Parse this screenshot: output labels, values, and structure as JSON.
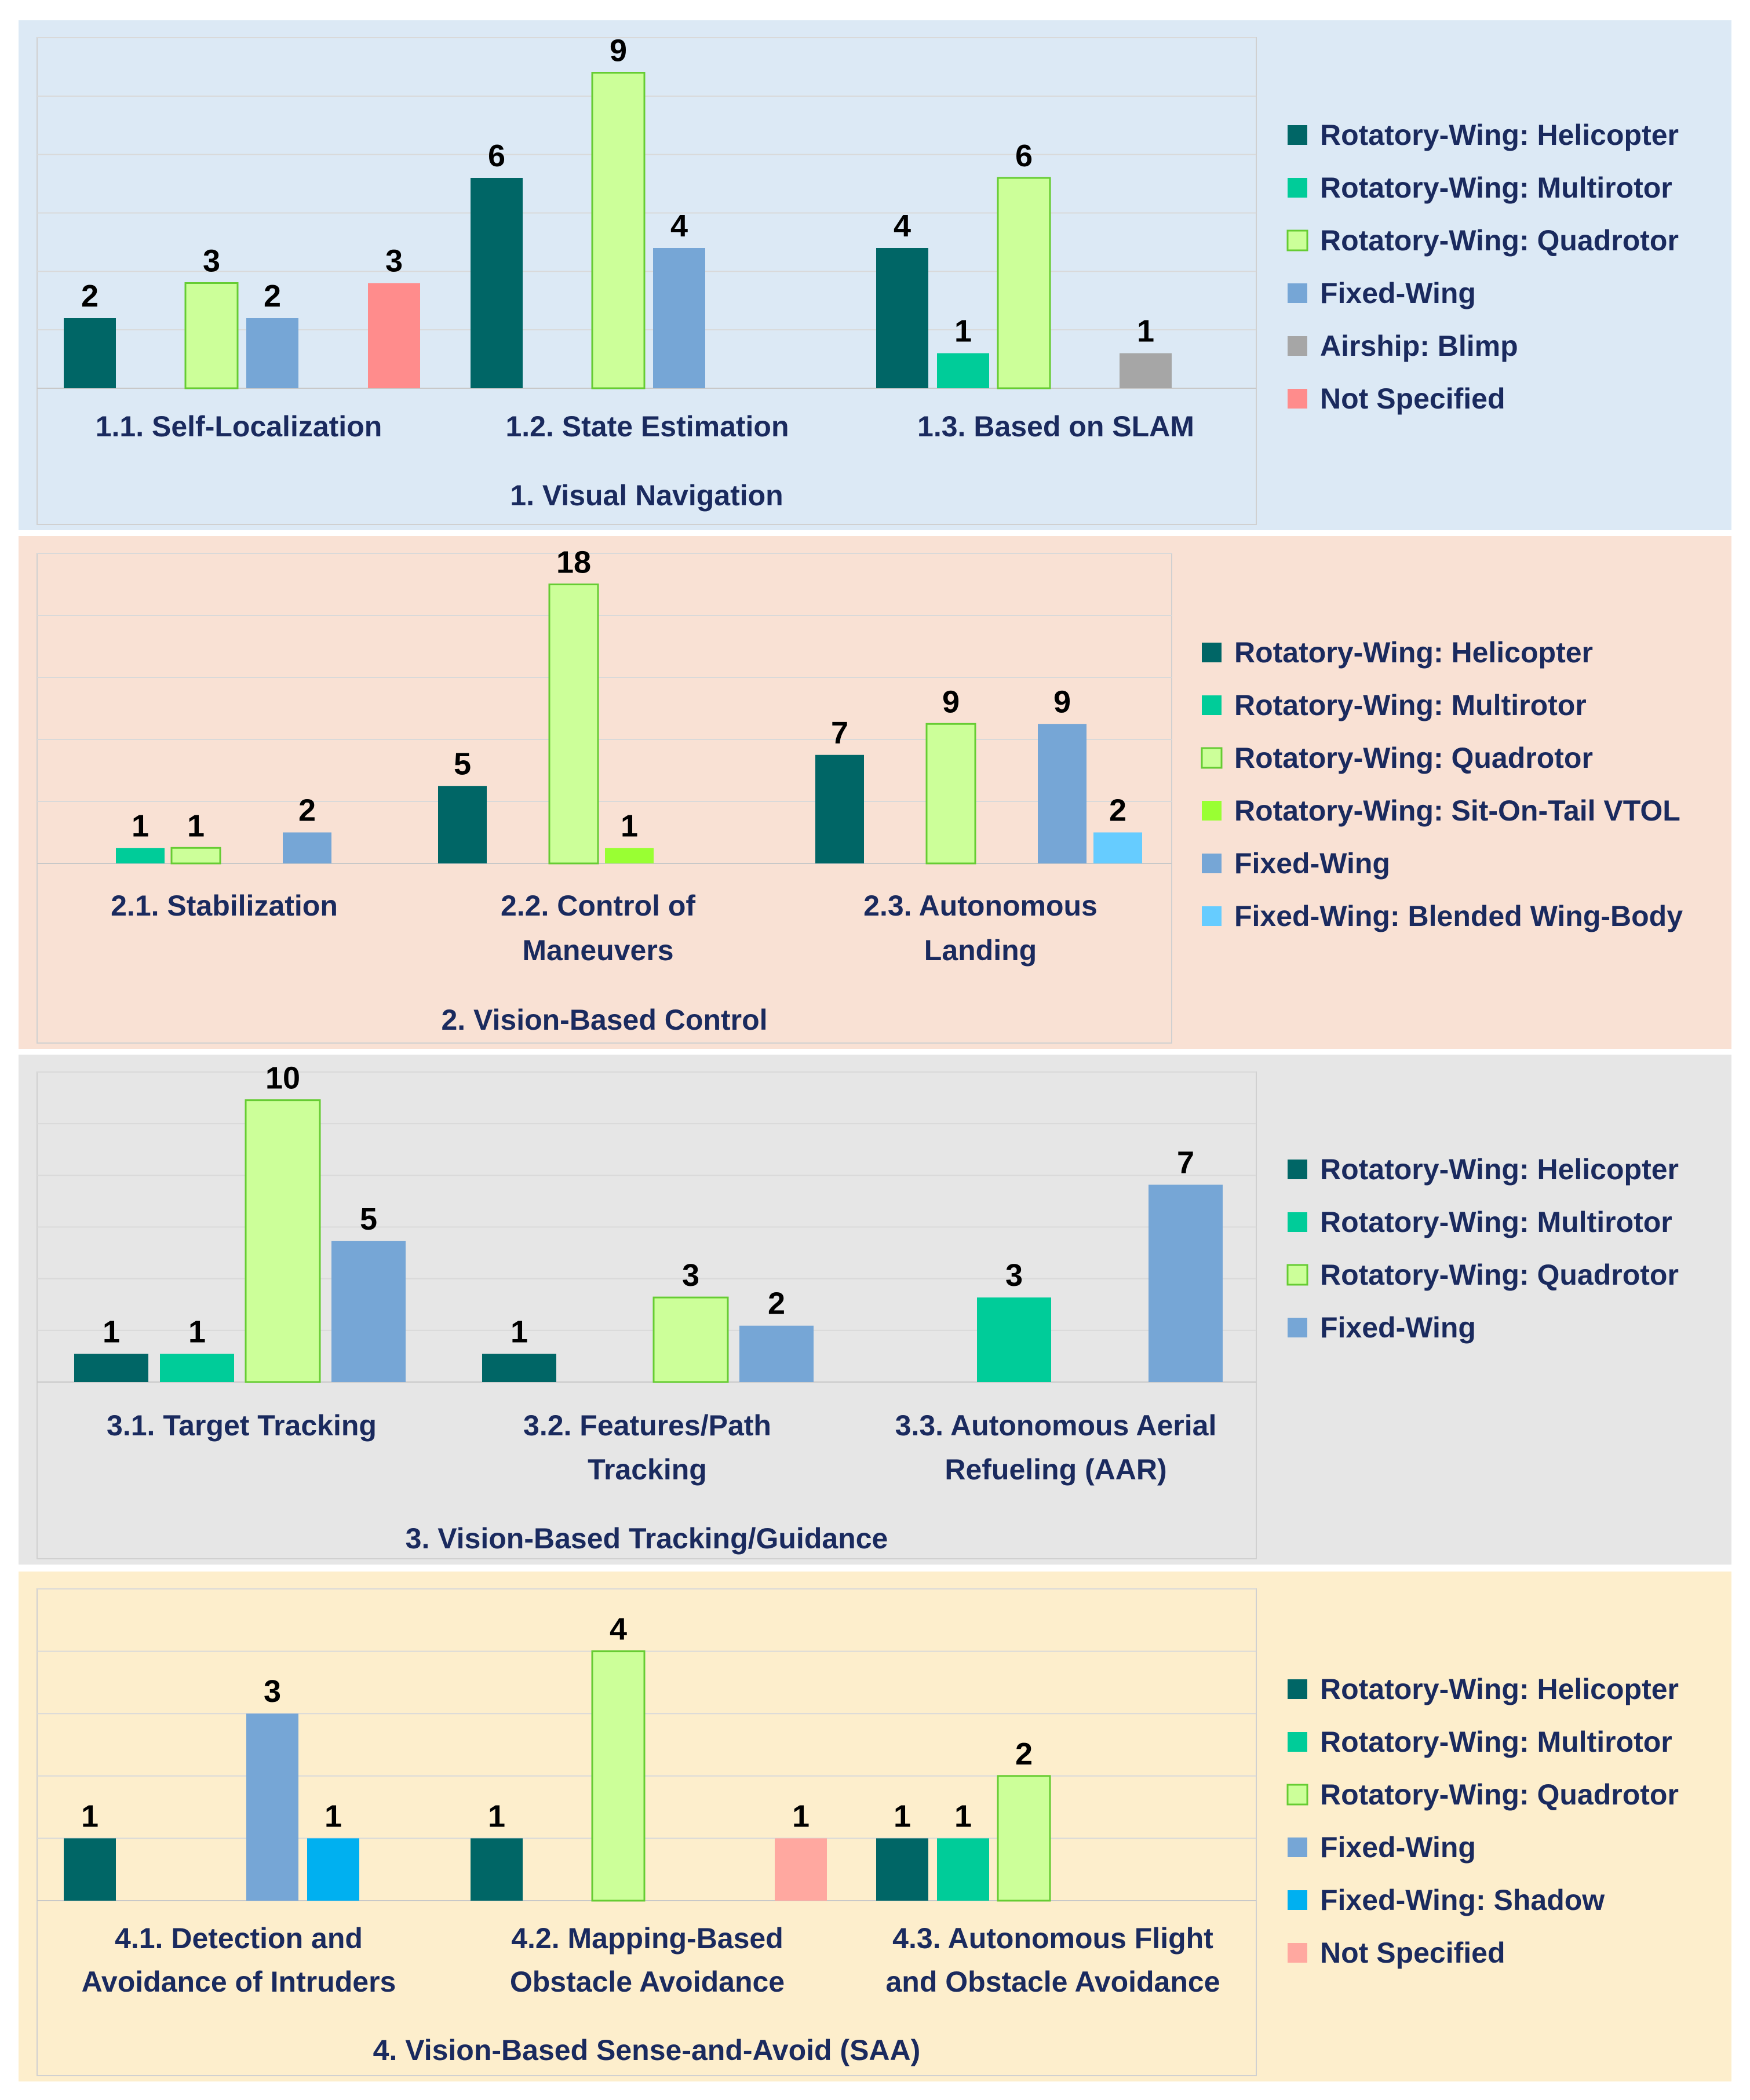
{
  "colors": {
    "Rotatory-Wing: Helicopter": "#006666",
    "Rotatory-Wing: Multirotor": "#00cc99",
    "Rotatory-Wing: Quadrotor": "#ccff99",
    "Rotatory-Wing: Sit-On-Tail VTOL": "#99ff33",
    "Fixed-Wing": "#76a6d6",
    "Fixed-Wing: Blended Wing-Body": "#66ccff",
    "Fixed-Wing: Shadow": "#00b0f0",
    "Airship: Blimp": "#a6a6a6",
    "Not Specified": "#ff8c8c",
    "Not Specified (4)": "#ffa8a0",
    "label_text": "#1a2a5e",
    "value_text": "#000000"
  },
  "chart_data": [
    {
      "type": "bar",
      "title": "1. Visual Navigation",
      "categories": [
        "1.1. Self-Localization",
        "1.2. State Estimation",
        "1.3. Based on SLAM"
      ],
      "ylim": [
        0,
        10
      ],
      "series": [
        {
          "name": "Rotatory-Wing: Helicopter",
          "values": [
            2,
            6,
            4
          ]
        },
        {
          "name": "Rotatory-Wing: Multirotor",
          "values": [
            0,
            0,
            1
          ]
        },
        {
          "name": "Rotatory-Wing: Quadrotor",
          "values": [
            3,
            9,
            6
          ]
        },
        {
          "name": "Fixed-Wing",
          "values": [
            2,
            4,
            0
          ]
        },
        {
          "name": "Airship: Blimp",
          "values": [
            0,
            0,
            1
          ]
        },
        {
          "name": "Not Specified",
          "values": [
            3,
            0,
            0
          ]
        }
      ]
    },
    {
      "type": "bar",
      "title": "2. Vision-Based Control",
      "categories": [
        "2.1. Stabilization",
        "2.2. Control of Maneuvers",
        "2.3. Autonomous Landing"
      ],
      "ylim": [
        0,
        20
      ],
      "series": [
        {
          "name": "Rotatory-Wing: Helicopter",
          "values": [
            0,
            5,
            7
          ]
        },
        {
          "name": "Rotatory-Wing: Multirotor",
          "values": [
            1,
            0,
            0
          ]
        },
        {
          "name": "Rotatory-Wing: Quadrotor",
          "values": [
            1,
            18,
            9
          ]
        },
        {
          "name": "Rotatory-Wing: Sit-On-Tail VTOL",
          "values": [
            0,
            1,
            0
          ]
        },
        {
          "name": "Fixed-Wing",
          "values": [
            2,
            0,
            9
          ]
        },
        {
          "name": "Fixed-Wing: Blended Wing-Body",
          "values": [
            0,
            0,
            2
          ]
        }
      ]
    },
    {
      "type": "bar",
      "title": "3. Vision-Based Tracking/Guidance",
      "categories": [
        "3.1. Target Tracking",
        "3.2. Features/Path Tracking",
        "3.3. Autonomous Aerial Refueling (AAR)"
      ],
      "ylim": [
        0,
        11
      ],
      "series": [
        {
          "name": "Rotatory-Wing: Helicopter",
          "values": [
            1,
            1,
            0
          ]
        },
        {
          "name": "Rotatory-Wing: Multirotor",
          "values": [
            1,
            0,
            3
          ]
        },
        {
          "name": "Rotatory-Wing: Quadrotor",
          "values": [
            10,
            3,
            0
          ]
        },
        {
          "name": "Fixed-Wing",
          "values": [
            5,
            2,
            7
          ]
        }
      ]
    },
    {
      "type": "bar",
      "title": "4. Vision-Based Sense-and-Avoid (SAA)",
      "categories": [
        "4.1. Detection and Avoidance of Intruders",
        "4.2. Mapping-Based Obstacle Avoidance",
        "4.3. Autonomous Flight and Obstacle Avoidance"
      ],
      "ylim": [
        0,
        5
      ],
      "series": [
        {
          "name": "Rotatory-Wing: Helicopter",
          "values": [
            1,
            1,
            1
          ]
        },
        {
          "name": "Rotatory-Wing: Multirotor",
          "values": [
            0,
            0,
            1
          ]
        },
        {
          "name": "Rotatory-Wing: Quadrotor",
          "values": [
            0,
            4,
            2
          ]
        },
        {
          "name": "Fixed-Wing",
          "values": [
            3,
            0,
            0
          ]
        },
        {
          "name": "Fixed-Wing: Shadow",
          "values": [
            1,
            0,
            0
          ]
        },
        {
          "name": "Not Specified",
          "values": [
            0,
            1,
            0
          ]
        }
      ]
    }
  ]
}
